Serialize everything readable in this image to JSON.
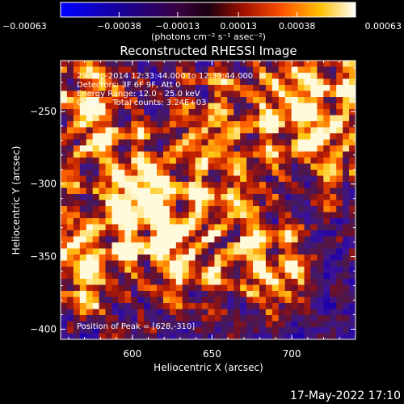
{
  "chart_data": {
    "type": "heatmap",
    "title": "Reconstructed RHESSI Image",
    "xlabel": "Heliocentric X (arcsec)",
    "ylabel": "Heliocentric Y (arcsec)",
    "xlim": [
      555,
      740
    ],
    "ylim": [
      -407,
      -215
    ],
    "xticks": [
      600,
      650,
      700
    ],
    "xtick_labels": [
      "600",
      "650",
      "700"
    ],
    "yticks": [
      -250,
      -300,
      -350,
      -400
    ],
    "ytick_labels": [
      "−250",
      "−300",
      "−350",
      "−400"
    ],
    "colorbar": {
      "ticks": [
        -0.00063,
        -0.00038,
        -0.00013,
        0.00013,
        0.00038,
        0.00063
      ],
      "tick_labels": [
        "−0.00063",
        "−0.00038",
        "−0.00013",
        "0.00013",
        "0.00038",
        "0.00063"
      ],
      "unit_label": "(photons cm⁻² s⁻¹ asec⁻²)"
    },
    "annotations": [
      "29-Sep-2014 12:33:44.000 to 12:39:44.000",
      "Detectors: 3F 6F 9F, Att 0",
      "Energy Range: 12.0 - 25.0 keV",
      "Clean     Total counts: 3.24E+03"
    ],
    "peak_label": "Position of Peak = [628,-310]",
    "footer_timestamp": "17-May-2022 17:10",
    "grid": false
  }
}
